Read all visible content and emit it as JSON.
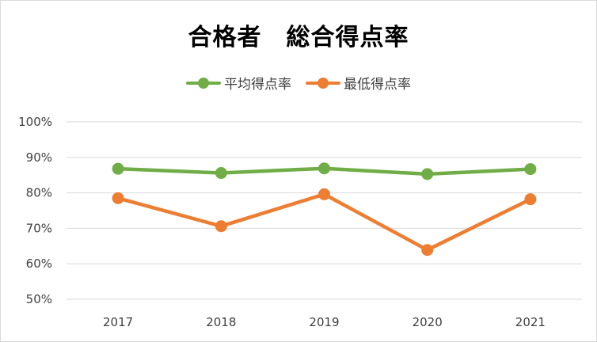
{
  "chart_data": {
    "type": "line",
    "title": "合格者　総合得点率",
    "categories": [
      "2017",
      "2018",
      "2019",
      "2020",
      "2021"
    ],
    "series": [
      {
        "name": "平均得点率",
        "color": "#70ad47",
        "values": [
          86.8,
          85.6,
          86.9,
          85.3,
          86.7
        ]
      },
      {
        "name": "最低得点率",
        "color": "#ed7d31",
        "values": [
          78.5,
          70.6,
          79.6,
          63.9,
          78.2
        ]
      }
    ],
    "ylim": [
      50,
      100
    ],
    "yticks": [
      "100%",
      "90%",
      "80%",
      "70%",
      "60%",
      "50%"
    ],
    "grid": true,
    "legend_position": "top"
  }
}
